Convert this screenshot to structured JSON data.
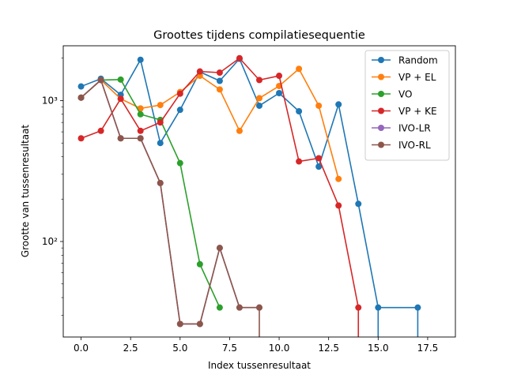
{
  "chart_data": {
    "type": "line",
    "title": "Groottes tijdens compilatiesequentie",
    "xlabel": "Index tussenresultaat",
    "ylabel": "Grootte van tussenresultaat",
    "yscale": "log",
    "xlim": [
      -0.9,
      18.9
    ],
    "ylim": [
      21,
      2450
    ],
    "grid": false,
    "legend_position": "top-right",
    "xticks": [
      0,
      2.5,
      5,
      7.5,
      10,
      12.5,
      15,
      17.5
    ],
    "xtick_labels": [
      "0.0",
      "2.5",
      "5.0",
      "7.5",
      "10.0",
      "12.5",
      "15.0",
      "17.5"
    ],
    "yticks": [
      100,
      1000
    ],
    "ytick_labels": [
      "10²",
      "10³"
    ],
    "series": [
      {
        "name": "Random",
        "color": "#1f77b4",
        "points": [
          [
            0,
            1260
          ],
          [
            1,
            1430
          ],
          [
            2,
            1100
          ],
          [
            3,
            1950
          ],
          [
            4,
            500
          ],
          [
            5,
            860
          ],
          [
            6,
            1600
          ],
          [
            7,
            1380
          ],
          [
            8,
            1980
          ],
          [
            9,
            920
          ],
          [
            10,
            1130
          ],
          [
            11,
            840
          ],
          [
            12,
            340
          ],
          [
            13,
            940
          ],
          [
            14,
            185
          ],
          [
            15,
            34
          ],
          [
            17,
            34
          ]
        ],
        "drops_to_floor": [
          15,
          17
        ]
      },
      {
        "name": "VP + EL",
        "color": "#ff7f0e",
        "points": [
          [
            0,
            1050
          ],
          [
            1,
            1400
          ],
          [
            2,
            1030
          ],
          [
            3,
            880
          ],
          [
            4,
            930
          ],
          [
            5,
            1150
          ],
          [
            6,
            1500
          ],
          [
            7,
            1200
          ],
          [
            8,
            610
          ],
          [
            9,
            1040
          ],
          [
            10,
            1270
          ],
          [
            11,
            1680
          ],
          [
            12,
            920
          ],
          [
            13,
            278
          ]
        ],
        "drops_to_floor": []
      },
      {
        "name": "VO",
        "color": "#2ca02c",
        "points": [
          [
            0,
            1050
          ],
          [
            1,
            1400
          ],
          [
            2,
            1410
          ],
          [
            3,
            800
          ],
          [
            4,
            730
          ],
          [
            5,
            360
          ],
          [
            6,
            69
          ],
          [
            7,
            34
          ]
        ],
        "drops_to_floor": []
      },
      {
        "name": "VP + KE",
        "color": "#d62728",
        "points": [
          [
            0,
            540
          ],
          [
            1,
            610
          ],
          [
            2,
            1030
          ],
          [
            3,
            610
          ],
          [
            4,
            700
          ],
          [
            5,
            1120
          ],
          [
            6,
            1610
          ],
          [
            7,
            1580
          ],
          [
            8,
            2000
          ],
          [
            9,
            1400
          ],
          [
            10,
            1500
          ],
          [
            11,
            370
          ],
          [
            12,
            390
          ],
          [
            13,
            180
          ],
          [
            14,
            34
          ]
        ],
        "drops_to_floor": [
          14
        ]
      },
      {
        "name": "IVO-LR",
        "color": "#9467bd",
        "points": [
          [
            0,
            1050
          ],
          [
            1,
            1400
          ],
          [
            2,
            540
          ],
          [
            3,
            540
          ],
          [
            4,
            260
          ],
          [
            5,
            26
          ],
          [
            6,
            26
          ],
          [
            7,
            90
          ],
          [
            8,
            34
          ],
          [
            9,
            34
          ]
        ],
        "drops_to_floor": []
      },
      {
        "name": "IVO-RL",
        "color": "#8c564b",
        "points": [
          [
            0,
            1050
          ],
          [
            1,
            1400
          ],
          [
            2,
            540
          ],
          [
            3,
            540
          ],
          [
            4,
            260
          ],
          [
            5,
            26
          ],
          [
            6,
            26
          ],
          [
            7,
            90
          ],
          [
            8,
            34
          ],
          [
            9,
            34
          ]
        ],
        "drops_to_floor": [
          9
        ]
      }
    ]
  }
}
